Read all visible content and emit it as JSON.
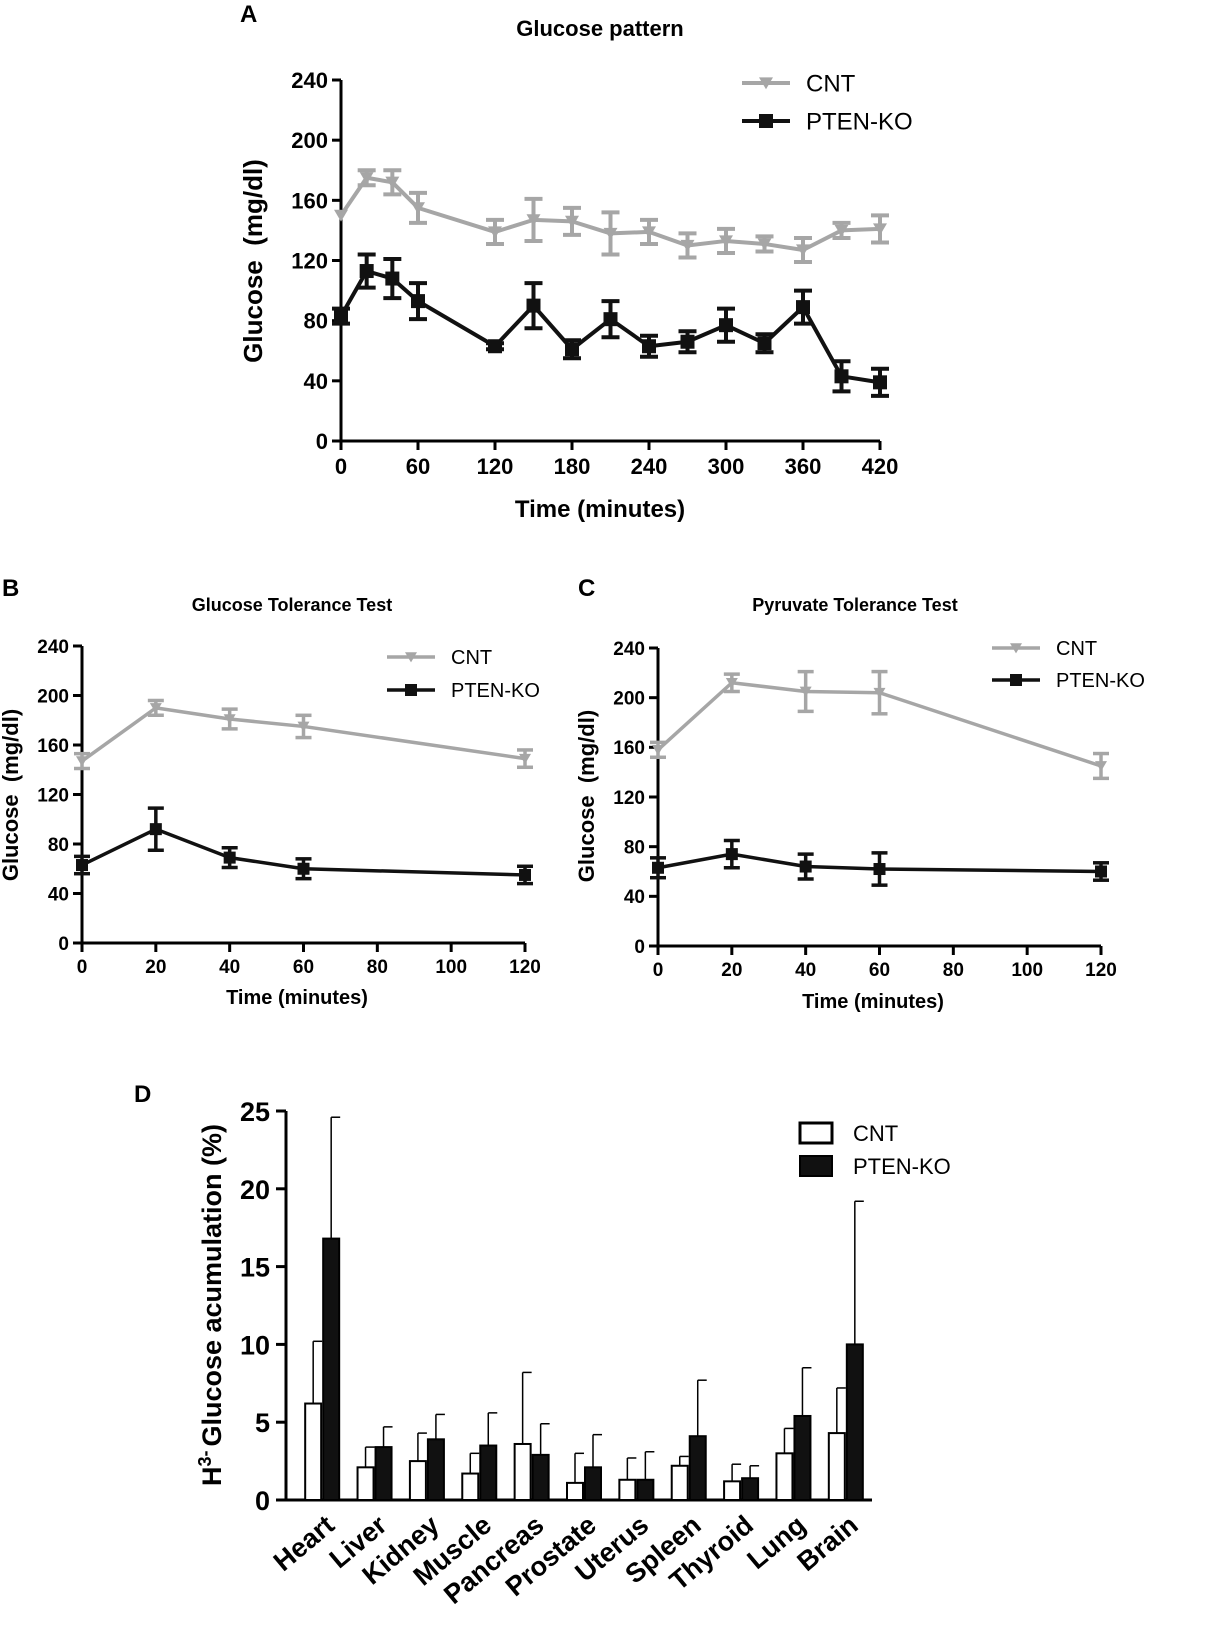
{
  "colors": {
    "cnt": "#a6a6a6",
    "pten": "#111111"
  },
  "chart_data": [
    {
      "panel": "A",
      "type": "line",
      "title": "Glucose pattern",
      "xlabel": "Time (minutes)",
      "ylabel": "Glucose  (mg/dl)",
      "xlim": [
        0,
        420
      ],
      "ylim": [
        0,
        240
      ],
      "xticks": [
        "0",
        "60",
        "120",
        "180",
        "240",
        "300",
        "360",
        "420"
      ],
      "yticks": [
        "0",
        "40",
        "80",
        "120",
        "160",
        "200",
        "240"
      ],
      "legend": [
        "CNT",
        "PTEN-KO"
      ],
      "series": [
        {
          "name": "CNT",
          "x": [
            0,
            20,
            40,
            60,
            120,
            150,
            180,
            210,
            240,
            270,
            300,
            330,
            360,
            390,
            420
          ],
          "y": [
            150,
            175,
            172,
            155,
            139,
            147,
            146,
            138,
            139,
            130,
            133,
            131,
            127,
            140,
            141
          ],
          "err": [
            0,
            5,
            8,
            10,
            8,
            14,
            9,
            14,
            8,
            8,
            8,
            5,
            8,
            5,
            9
          ]
        },
        {
          "name": "PTEN-KO",
          "x": [
            0,
            20,
            40,
            60,
            120,
            150,
            180,
            210,
            240,
            270,
            300,
            330,
            360,
            390,
            420
          ],
          "y": [
            83,
            113,
            108,
            93,
            63,
            90,
            61,
            81,
            63,
            66,
            77,
            65,
            89,
            43,
            39
          ],
          "err": [
            5,
            11,
            13,
            12,
            2,
            15,
            6,
            12,
            7,
            7,
            11,
            6,
            11,
            10,
            9
          ]
        }
      ]
    },
    {
      "panel": "B",
      "type": "line",
      "title": "Glucose Tolerance Test",
      "xlabel": "Time (minutes)",
      "ylabel": "Glucose  (mg/dl)",
      "xlim": [
        0,
        120
      ],
      "ylim": [
        0,
        240
      ],
      "xticks": [
        "0",
        "20",
        "40",
        "60",
        "80",
        "100",
        "120"
      ],
      "yticks": [
        "0",
        "40",
        "80",
        "120",
        "160",
        "200",
        "240"
      ],
      "legend": [
        "CNT",
        "PTEN-KO"
      ],
      "series": [
        {
          "name": "CNT",
          "x": [
            0,
            20,
            40,
            60,
            120
          ],
          "y": [
            147,
            190,
            181,
            175,
            149
          ],
          "err": [
            6,
            6,
            8,
            9,
            7
          ]
        },
        {
          "name": "PTEN-KO",
          "x": [
            0,
            20,
            40,
            60,
            120
          ],
          "y": [
            63,
            92,
            69,
            60,
            55
          ],
          "err": [
            7,
            17,
            8,
            8,
            7
          ]
        }
      ]
    },
    {
      "panel": "C",
      "type": "line",
      "title": "Pyruvate Tolerance Test",
      "xlabel": "Time (minutes)",
      "ylabel": "Glucose  (mg/dl)",
      "xlim": [
        0,
        120
      ],
      "ylim": [
        0,
        240
      ],
      "xticks": [
        "0",
        "20",
        "40",
        "60",
        "80",
        "100",
        "120"
      ],
      "yticks": [
        "0",
        "40",
        "80",
        "120",
        "160",
        "200",
        "240"
      ],
      "legend": [
        "CNT",
        "PTEN-KO"
      ],
      "series": [
        {
          "name": "CNT",
          "x": [
            0,
            20,
            40,
            60,
            120
          ],
          "y": [
            158,
            212,
            205,
            204,
            145
          ],
          "err": [
            6,
            7,
            16,
            17,
            10
          ]
        },
        {
          "name": "PTEN-KO",
          "x": [
            0,
            20,
            40,
            60,
            120
          ],
          "y": [
            63,
            74,
            64,
            62,
            60
          ],
          "err": [
            8,
            11,
            10,
            13,
            7
          ]
        }
      ]
    },
    {
      "panel": "D",
      "type": "bar",
      "title": "",
      "xlabel": "",
      "ylabel": "Glucose acumulation (%)",
      "ylabel_prefix": "H",
      "ylabel_sup": "3-",
      "ylim": [
        0,
        25
      ],
      "yticks": [
        "0",
        "5",
        "10",
        "15",
        "20",
        "25"
      ],
      "categories": [
        "Heart",
        "Liver",
        "Kidney",
        "Muscle",
        "Pancreas",
        "Prostate",
        "Uterus",
        "Spleen",
        "Thyroid",
        "Lung",
        "Brain"
      ],
      "legend": [
        "CNT",
        "PTEN-KO"
      ],
      "series": [
        {
          "name": "CNT",
          "values": [
            6.2,
            2.1,
            2.5,
            1.7,
            3.6,
            1.1,
            1.3,
            2.2,
            1.2,
            3.0,
            4.3
          ],
          "err": [
            4.0,
            1.3,
            1.8,
            1.3,
            4.6,
            1.9,
            1.4,
            0.6,
            1.1,
            1.6,
            2.9
          ]
        },
        {
          "name": "PTEN-KO",
          "values": [
            16.8,
            3.4,
            3.9,
            3.5,
            2.9,
            2.1,
            1.3,
            4.1,
            1.4,
            5.4,
            10.0
          ],
          "err": [
            7.8,
            1.3,
            1.6,
            2.1,
            2.0,
            2.1,
            1.8,
            3.6,
            0.8,
            3.1,
            9.2
          ]
        }
      ]
    }
  ]
}
